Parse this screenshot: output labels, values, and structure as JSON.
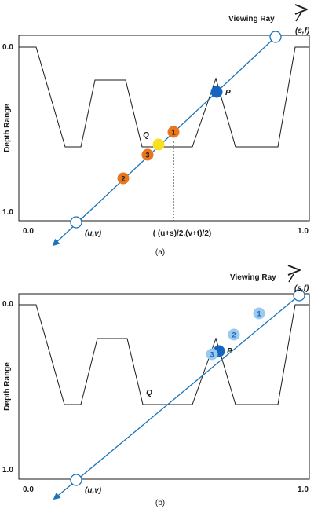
{
  "colors": {
    "ray": "#1b74b8",
    "frame": "#1a1a1a",
    "sample_orange": "#e8761e",
    "sample_yellow": "#f7e01d",
    "sample_light_blue": "#9ccaee",
    "hit_blue": "#1565c0",
    "endpoint_fill": "#ffffff"
  },
  "icons": {
    "eye": "eye-icon"
  },
  "panel_a": {
    "viewing_ray": "Viewing Ray",
    "eye_point": "(s,f)",
    "start_point": "(u,v)",
    "y_axis_label": "Depth Range",
    "y_top": "0.0",
    "y_bottom": "1.0",
    "x_left": "0.0",
    "x_right": "1.0",
    "midpoint_label": "( (u+s)/2,(v+t)/2)",
    "caption": "(a)",
    "label_q": "Q",
    "label_p": "P",
    "samples": [
      "1",
      "2",
      "3"
    ]
  },
  "panel_b": {
    "viewing_ray": "Viewing Ray",
    "eye_point": "(s,f)",
    "start_point": "(u,v)",
    "y_axis_label": "Depth Range",
    "y_top": "0.0",
    "y_bottom": "1.0",
    "x_left": "0.0",
    "x_right": "1.0",
    "caption": "(b)",
    "label_q": "Q",
    "label_p": "P",
    "samples": [
      "1",
      "2",
      "3"
    ]
  }
}
